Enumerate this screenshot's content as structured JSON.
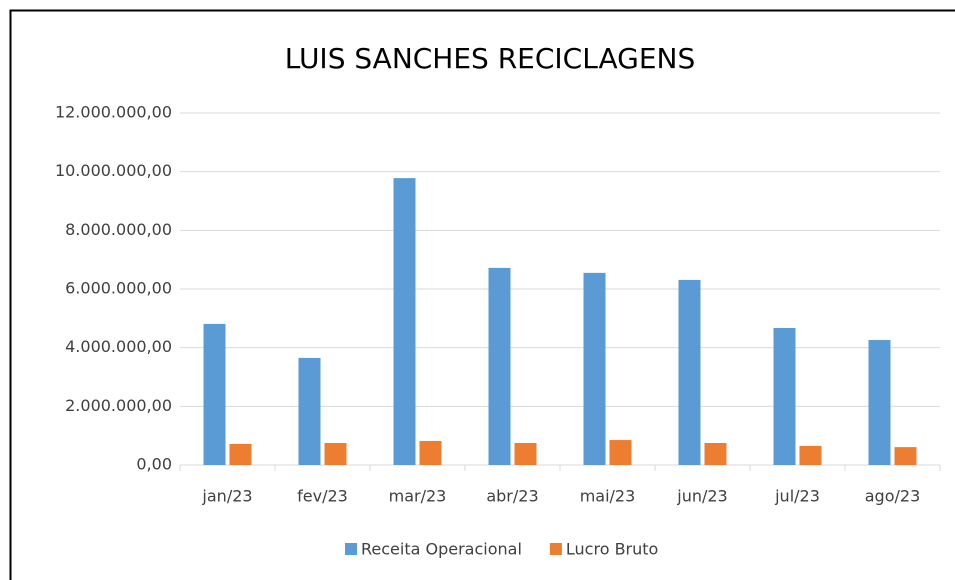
{
  "chart_data": {
    "type": "bar",
    "title": "LUIS SANCHES RECICLAGENS",
    "categories": [
      "jan/23",
      "fev/23",
      "mar/23",
      "abr/23",
      "mai/23",
      "jun/23",
      "jul/23",
      "ago/23"
    ],
    "series": [
      {
        "name": "Receita Operacional",
        "color": "#5b9bd5",
        "values": [
          4810000,
          3650000,
          9780000,
          6720000,
          6550000,
          6310000,
          4670000,
          4260000
        ]
      },
      {
        "name": "Lucro Bruto",
        "color": "#ed7d31",
        "values": [
          720000,
          750000,
          820000,
          750000,
          850000,
          750000,
          650000,
          610000
        ]
      }
    ],
    "ylim": [
      0,
      12000000
    ],
    "yticks": [
      {
        "value": 0,
        "label": "0,00"
      },
      {
        "value": 2000000,
        "label": "2.000.000,00"
      },
      {
        "value": 4000000,
        "label": "4.000.000,00"
      },
      {
        "value": 6000000,
        "label": "6.000.000,00"
      },
      {
        "value": 8000000,
        "label": "8.000.000,00"
      },
      {
        "value": 10000000,
        "label": "10.000.000,00"
      },
      {
        "value": 12000000,
        "label": "12.000.000,00"
      }
    ],
    "grid": true,
    "legend": "bottom"
  }
}
